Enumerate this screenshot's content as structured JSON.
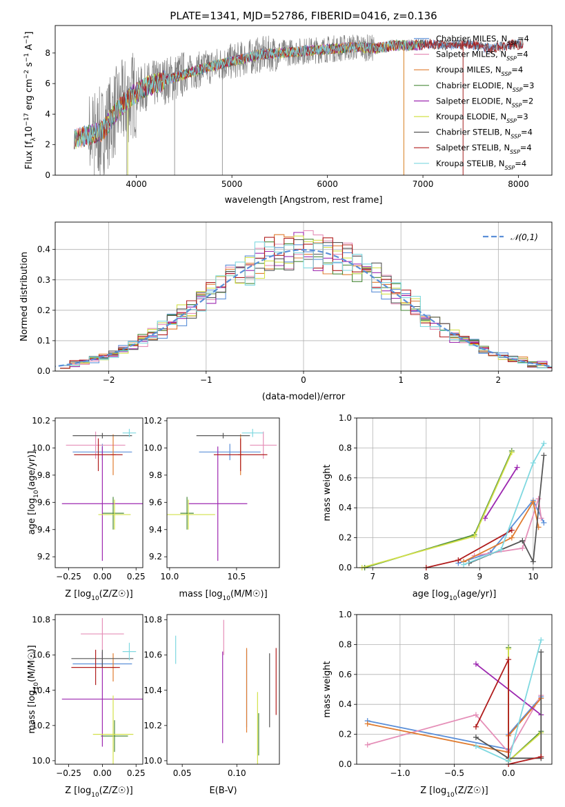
{
  "colors": {
    "miles_chabrier": "#5b8fd8",
    "miles_salpeter": "#e58fb8",
    "miles_kroupa": "#e07b2f",
    "elodie_chabrier": "#4a8a3a",
    "elodie_salpeter": "#9c27b0",
    "elodie_kroupa": "#d2e048",
    "stelib_chabrier": "#555555",
    "stelib_salpeter": "#b01c1c",
    "stelib_kroupa": "#7fd8e0",
    "data": "#808080",
    "normal": "#5b8fd8",
    "grid": "#b0b0b0"
  },
  "chart_data": [
    {
      "type": "line",
      "title": "PLATE=1341, MJD=52786, FIBERID=0416, z=0.136",
      "xlabel": "wavelength [Angstrom, rest frame]",
      "ylabel": "Flux [f_λ10^-17 erg cm^-2 s^-1 A^-1]",
      "xlim": [
        3150,
        8350
      ],
      "ylim": [
        0,
        9.8
      ],
      "xticks": [
        4000,
        5000,
        6000,
        7000,
        8000
      ],
      "yticks": [
        0,
        2,
        4,
        6,
        8
      ],
      "grid": false,
      "legend_position": "right",
      "series": [
        {
          "name": "Chabrier MILES, N_SSP=4",
          "color_key": "miles_chabrier"
        },
        {
          "name": "Salpeter MILES, N_SSP=4",
          "color_key": "miles_salpeter"
        },
        {
          "name": "Kroupa MILES, N_SSP=4",
          "color_key": "miles_kroupa"
        },
        {
          "name": "Chabrier ELODIE, N_SSP=3",
          "color_key": "elodie_chabrier"
        },
        {
          "name": "Salpeter ELODIE, N_SSP=2",
          "color_key": "elodie_salpeter"
        },
        {
          "name": "Kroupa ELODIE, N_SSP=3",
          "color_key": "elodie_kroupa"
        },
        {
          "name": "Chabrier STELIB, N_SSP=4",
          "color_key": "stelib_chabrier"
        },
        {
          "name": "Salpeter STELIB, N_SSP=4",
          "color_key": "stelib_salpeter"
        },
        {
          "name": "Kroupa STELIB, N_SSP=4",
          "color_key": "stelib_kroupa"
        }
      ],
      "continuum": {
        "x": [
          3350,
          3500,
          3650,
          3800,
          3950,
          4100,
          4300,
          4500,
          4700,
          4900,
          5100,
          5300,
          5500,
          5700,
          5900,
          6100,
          6300,
          6500,
          6700,
          6900,
          7100,
          7300,
          7500,
          7700,
          7900,
          8050
        ],
        "y": [
          2.4,
          2.6,
          2.9,
          4.3,
          5.2,
          5.8,
          6.2,
          6.6,
          7.0,
          7.3,
          7.6,
          7.9,
          8.0,
          8.1,
          8.2,
          8.3,
          8.4,
          8.3,
          8.5,
          8.5,
          8.6,
          8.5,
          8.6,
          8.3,
          8.5,
          8.6
        ]
      }
    },
    {
      "type": "histogram",
      "xlabel": "(data-model)/error",
      "ylabel": "Normed distribution",
      "xlim": [
        -2.55,
        2.55
      ],
      "ylim": [
        0,
        0.49
      ],
      "xticks": [
        -2,
        -1,
        0,
        1,
        2
      ],
      "yticks": [
        0.0,
        0.1,
        0.2,
        0.3,
        0.4
      ],
      "grid": true,
      "legend_position": "top-right",
      "legend": "𝒩(0,1)",
      "bin_width": 0.1,
      "bin_start": -2.5,
      "normal_curve": {
        "mean": 0,
        "sigma": 1
      }
    },
    {
      "type": "errorbar",
      "xlabel": "Z [log10(Z/Z☉)]",
      "ylabel": "age [log10(age/yr)]",
      "xlim": [
        -0.35,
        0.3
      ],
      "ylim": [
        9.12,
        10.22
      ],
      "xticks": [
        -0.25,
        0.0,
        0.25
      ],
      "xticklabels": [
        "−0.25",
        "0.00",
        "0.25"
      ],
      "yticks": [
        9.2,
        9.4,
        9.6,
        9.8,
        10.0,
        10.2
      ],
      "points": [
        {
          "c": "miles_chabrier",
          "x": 0.0,
          "xerr": 0.22,
          "y": 9.97,
          "yerr": 0.06
        },
        {
          "c": "miles_salpeter",
          "x": -0.05,
          "xerr": 0.22,
          "y": 10.02,
          "yerr": 0.1
        },
        {
          "c": "miles_kroupa",
          "x": 0.08,
          "xerr": 0.02,
          "y": 9.95,
          "yerr": 0.15
        },
        {
          "c": "elodie_chabrier",
          "x": 0.08,
          "xerr": 0.08,
          "y": 9.52,
          "yerr": 0.12
        },
        {
          "c": "elodie_salpeter",
          "x": 0.0,
          "xerr": 0.3,
          "y": 9.59,
          "yerr": 0.42
        },
        {
          "c": "elodie_kroupa",
          "x": 0.09,
          "xerr": 0.12,
          "y": 9.51,
          "yerr": 0.11
        },
        {
          "c": "stelib_chabrier",
          "x": 0.0,
          "xerr": 0.22,
          "y": 10.09,
          "yerr": 0.02
        },
        {
          "c": "stelib_salpeter",
          "x": -0.03,
          "xerr": 0.18,
          "y": 9.95,
          "yerr": 0.12
        },
        {
          "c": "stelib_kroupa",
          "x": 0.2,
          "xerr": 0.05,
          "y": 10.11,
          "yerr": 0.03
        }
      ]
    },
    {
      "type": "errorbar",
      "xlabel": "mass [log10(M/M☉)]",
      "xlim": [
        9.98,
        10.82
      ],
      "ylim": [
        9.12,
        10.22
      ],
      "xticks": [
        10.0,
        10.5
      ],
      "yticks": [
        9.2,
        9.4,
        9.6,
        9.8,
        10.0,
        10.2
      ],
      "points": [
        {
          "c": "miles_chabrier",
          "x": 10.45,
          "xerr": 0.23,
          "y": 9.97,
          "yerr": 0.06
        },
        {
          "c": "miles_salpeter",
          "x": 10.7,
          "xerr": 0.1,
          "y": 10.02,
          "yerr": 0.1
        },
        {
          "c": "miles_kroupa",
          "x": 10.53,
          "xerr": 0.02,
          "y": 9.95,
          "yerr": 0.15
        },
        {
          "c": "elodie_chabrier",
          "x": 10.13,
          "xerr": 0.05,
          "y": 9.52,
          "yerr": 0.12
        },
        {
          "c": "elodie_salpeter",
          "x": 10.36,
          "xerr": 0.22,
          "y": 9.59,
          "yerr": 0.42
        },
        {
          "c": "elodie_kroupa",
          "x": 10.14,
          "xerr": 0.2,
          "y": 9.51,
          "yerr": 0.11
        },
        {
          "c": "stelib_chabrier",
          "x": 10.4,
          "xerr": 0.2,
          "y": 10.09,
          "yerr": 0.02
        },
        {
          "c": "stelib_salpeter",
          "x": 10.53,
          "xerr": 0.2,
          "y": 9.95,
          "yerr": 0.12
        },
        {
          "c": "stelib_kroupa",
          "x": 10.62,
          "xerr": 0.08,
          "y": 10.11,
          "yerr": 0.03
        }
      ]
    },
    {
      "type": "line",
      "xlabel": "age [log10(age/yr)]",
      "ylabel": "mass weight",
      "xlim": [
        6.7,
        10.35
      ],
      "ylim": [
        0,
        1
      ],
      "xticks": [
        7,
        8,
        9,
        10
      ],
      "yticks": [
        0.0,
        0.2,
        0.4,
        0.6,
        0.8,
        1.0
      ],
      "grid": true,
      "series": [
        {
          "c": "miles_chabrier",
          "x": [
            8.6,
            9.2,
            10.0,
            10.2
          ],
          "y": [
            0.03,
            0.1,
            0.45,
            0.3
          ]
        },
        {
          "c": "miles_salpeter",
          "x": [
            8.9,
            9.8,
            10.1,
            10.15
          ],
          "y": [
            0.08,
            0.13,
            0.46,
            0.33
          ]
        },
        {
          "c": "miles_kroupa",
          "x": [
            8.7,
            9.6,
            10.0,
            10.1
          ],
          "y": [
            0.04,
            0.2,
            0.44,
            0.27
          ]
        },
        {
          "c": "elodie_chabrier",
          "x": [
            6.85,
            8.9,
            9.6
          ],
          "y": [
            0.0,
            0.22,
            0.78
          ]
        },
        {
          "c": "elodie_salpeter",
          "x": [
            9.1,
            9.7
          ],
          "y": [
            0.33,
            0.67
          ]
        },
        {
          "c": "elodie_kroupa",
          "x": [
            6.8,
            8.9,
            9.6
          ],
          "y": [
            0.0,
            0.21,
            0.77
          ]
        },
        {
          "c": "stelib_chabrier",
          "x": [
            8.8,
            9.8,
            10.0,
            10.2
          ],
          "y": [
            0.03,
            0.18,
            0.04,
            0.75
          ]
        },
        {
          "c": "stelib_salpeter",
          "x": [
            8.0,
            8.6,
            9.6
          ],
          "y": [
            0.0,
            0.05,
            0.25
          ]
        },
        {
          "c": "stelib_kroupa",
          "x": [
            8.7,
            9.4,
            10.0,
            10.2
          ],
          "y": [
            0.02,
            0.12,
            0.7,
            0.83
          ]
        }
      ]
    },
    {
      "type": "errorbar",
      "xlabel": "Z [log10(Z/Z☉)]",
      "ylabel": "mass [log10(M/M☉)]",
      "xlim": [
        -0.35,
        0.3
      ],
      "ylim": [
        9.98,
        10.83
      ],
      "xticks": [
        -0.25,
        0.0,
        0.25
      ],
      "xticklabels": [
        "−0.25",
        "0.00",
        "0.25"
      ],
      "yticks": [
        10.0,
        10.2,
        10.4,
        10.6,
        10.8
      ],
      "points": [
        {
          "c": "miles_chabrier",
          "x": 0.0,
          "xerr": 0.22,
          "y": 10.55,
          "yerr": 0.02
        },
        {
          "c": "miles_salpeter",
          "x": 0.0,
          "xerr": 0.16,
          "y": 10.72,
          "yerr": 0.09
        },
        {
          "c": "miles_kroupa",
          "x": 0.08,
          "xerr": 0.02,
          "y": 10.53,
          "yerr": 0.08
        },
        {
          "c": "elodie_chabrier",
          "x": 0.09,
          "xerr": 0.1,
          "y": 10.14,
          "yerr": 0.09
        },
        {
          "c": "elodie_salpeter",
          "x": 0.0,
          "xerr": 0.3,
          "y": 10.35,
          "yerr": 0.27
        },
        {
          "c": "elodie_kroupa",
          "x": 0.08,
          "xerr": 0.15,
          "y": 10.15,
          "yerr": 0.22
        },
        {
          "c": "stelib_chabrier",
          "x": 0.0,
          "xerr": 0.23,
          "y": 10.58,
          "yerr": 0.05
        },
        {
          "c": "stelib_salpeter",
          "x": -0.05,
          "xerr": 0.18,
          "y": 10.53,
          "yerr": 0.1
        },
        {
          "c": "stelib_kroupa",
          "x": 0.2,
          "xerr": 0.05,
          "y": 10.62,
          "yerr": 0.05
        }
      ]
    },
    {
      "type": "errorbar",
      "xlabel": "E(B-V)",
      "xlim": [
        0.036,
        0.139
      ],
      "ylim": [
        9.98,
        10.83
      ],
      "xticks": [
        0.05,
        0.1
      ],
      "xticklabels": [
        "0.05",
        "0.10"
      ],
      "yticks": [
        10.0,
        10.2,
        10.4,
        10.6,
        10.8
      ],
      "points": [
        {
          "c": "miles_chabrier",
          "x": 0.109,
          "y": 10.41,
          "yerr": 0.22
        },
        {
          "c": "miles_salpeter",
          "x": 0.088,
          "y": 10.7,
          "yerr": 0.1
        },
        {
          "c": "miles_kroupa",
          "x": 0.109,
          "y": 10.4,
          "yerr": 0.24
        },
        {
          "c": "elodie_chabrier",
          "x": 0.12,
          "y": 10.15,
          "yerr": 0.12
        },
        {
          "c": "elodie_salpeter",
          "x": 0.087,
          "y": 10.36,
          "yerr": 0.26
        },
        {
          "c": "elodie_kroupa",
          "x": 0.119,
          "y": 10.17,
          "yerr": 0.22
        },
        {
          "c": "stelib_chabrier",
          "x": 0.13,
          "y": 10.4,
          "yerr": 0.21
        },
        {
          "c": "stelib_salpeter",
          "x": 0.136,
          "y": 10.45,
          "yerr": 0.19
        },
        {
          "c": "stelib_kroupa",
          "x": 0.044,
          "y": 10.63,
          "yerr": 0.08
        }
      ]
    },
    {
      "type": "line",
      "xlabel": "Z [log10(Z/Z☉)]",
      "ylabel": "mass weight",
      "xlim": [
        -1.4,
        0.4
      ],
      "ylim": [
        0,
        1
      ],
      "xticks": [
        -1.0,
        -0.5,
        0.0
      ],
      "xticklabels": [
        "−1.0",
        "−0.5",
        "0.0"
      ],
      "yticks": [
        0.0,
        0.2,
        0.4,
        0.6,
        0.8,
        1.0
      ],
      "grid": true,
      "series": [
        {
          "c": "miles_chabrier",
          "x": [
            -1.3,
            0.0,
            0.0,
            0.3
          ],
          "y": [
            0.29,
            0.1,
            0.2,
            0.45
          ]
        },
        {
          "c": "miles_salpeter",
          "x": [
            -1.3,
            -0.3,
            0.0,
            0.3
          ],
          "y": [
            0.13,
            0.33,
            0.08,
            0.46
          ]
        },
        {
          "c": "miles_kroupa",
          "x": [
            -1.3,
            0.0,
            0.0,
            0.3
          ],
          "y": [
            0.27,
            0.08,
            0.19,
            0.44
          ]
        },
        {
          "c": "elodie_chabrier",
          "x": [
            0.0,
            0.0,
            0.3
          ],
          "y": [
            0.78,
            0.02,
            0.22
          ]
        },
        {
          "c": "elodie_salpeter",
          "x": [
            -0.3,
            0.3
          ],
          "y": [
            0.67,
            0.33
          ]
        },
        {
          "c": "elodie_kroupa",
          "x": [
            0.0,
            0.0,
            0.3
          ],
          "y": [
            0.77,
            0.02,
            0.21
          ]
        },
        {
          "c": "stelib_chabrier",
          "x": [
            -0.3,
            0.0,
            0.3,
            0.3
          ],
          "y": [
            0.18,
            0.04,
            0.04,
            0.75
          ]
        },
        {
          "c": "stelib_salpeter",
          "x": [
            -0.3,
            0.0,
            0.0,
            0.3
          ],
          "y": [
            0.25,
            0.7,
            0.0,
            0.05
          ]
        },
        {
          "c": "stelib_kroupa",
          "x": [
            -0.3,
            0.0,
            0.3
          ],
          "y": [
            0.12,
            0.02,
            0.83
          ]
        }
      ]
    }
  ]
}
